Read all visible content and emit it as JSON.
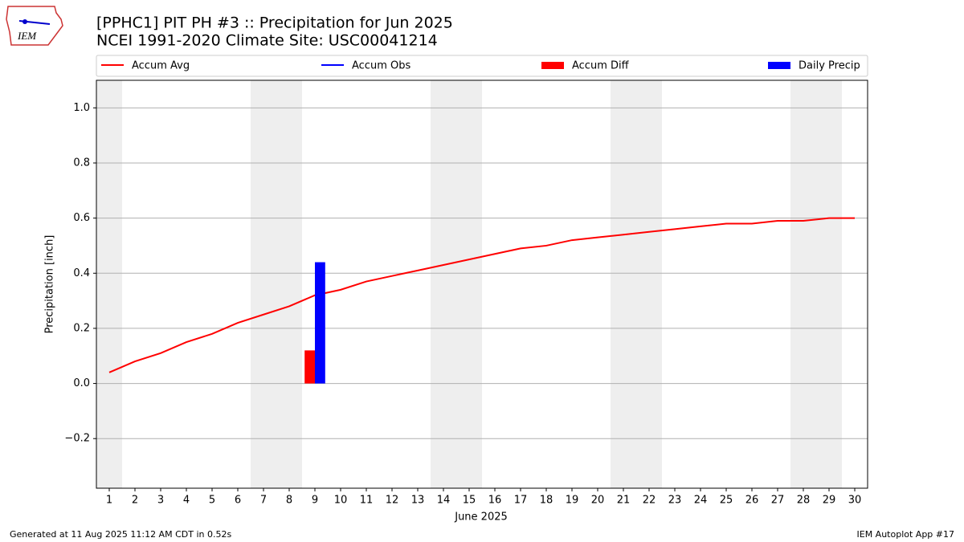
{
  "logo_text": "IEM",
  "footer_left": "Generated at 11 Aug 2025 11:12 AM CDT in 0.52s",
  "footer_right": "IEM Autoplot App #17",
  "chart_data": {
    "type": "line",
    "title": "[PPHC1] PIT PH #3 :: Precipitation for Jun 2025",
    "subtitle": "NCEI 1991-2020 Climate Site: USC00041214",
    "x_label": "June 2025",
    "y_label": "Precipitation [inch]",
    "x": [
      1,
      2,
      3,
      4,
      5,
      6,
      7,
      8,
      9,
      10,
      11,
      12,
      13,
      14,
      15,
      16,
      17,
      18,
      19,
      20,
      21,
      22,
      23,
      24,
      25,
      26,
      27,
      28,
      29,
      30
    ],
    "xlim": [
      0.5,
      30.5
    ],
    "xticks": [
      1,
      2,
      3,
      4,
      5,
      6,
      7,
      8,
      9,
      10,
      11,
      12,
      13,
      14,
      15,
      16,
      17,
      18,
      19,
      20,
      21,
      22,
      23,
      24,
      25,
      26,
      27,
      28,
      29,
      30
    ],
    "ylim": [
      -0.38,
      1.1
    ],
    "yticks": [
      {
        "value": -0.2,
        "label": "−0.2"
      },
      {
        "value": 0,
        "label": "0.0"
      },
      {
        "value": 0.2,
        "label": "0.2"
      },
      {
        "value": 0.4,
        "label": "0.4"
      },
      {
        "value": 0.6,
        "label": "0.6"
      },
      {
        "value": 0.8,
        "label": "0.8"
      },
      {
        "value": 1.0,
        "label": "1.0"
      }
    ],
    "grid": true,
    "shaded_spans": [
      [
        0.5,
        1.5
      ],
      [
        6.5,
        8.5
      ],
      [
        13.5,
        15.5
      ],
      [
        20.5,
        22.5
      ],
      [
        27.5,
        29.5
      ]
    ],
    "shade_color": "#eeeeee",
    "series": [
      {
        "name": "Accum Avg",
        "type": "line",
        "color": "#ff0000",
        "values": [
          0.04,
          0.08,
          0.11,
          0.15,
          0.18,
          0.22,
          0.25,
          0.28,
          0.32,
          0.34,
          0.37,
          0.39,
          0.41,
          0.43,
          0.45,
          0.47,
          0.49,
          0.5,
          0.52,
          0.53,
          0.54,
          0.55,
          0.56,
          0.57,
          0.58,
          0.58,
          0.59,
          0.59,
          0.6,
          0.6
        ]
      },
      {
        "name": "Accum Obs",
        "type": "line",
        "color": "#0000ff",
        "values": [
          null,
          null,
          null,
          null,
          null,
          null,
          null,
          null,
          null,
          null,
          null,
          null,
          null,
          null,
          null,
          null,
          null,
          null,
          null,
          null,
          null,
          null,
          null,
          null,
          null,
          null,
          null,
          null,
          null,
          null
        ]
      },
      {
        "name": "Accum Diff",
        "type": "bar",
        "color": "#ff0000",
        "values": [
          null,
          null,
          null,
          null,
          null,
          null,
          null,
          null,
          0.12,
          null,
          null,
          null,
          null,
          null,
          null,
          null,
          null,
          null,
          null,
          null,
          null,
          null,
          null,
          null,
          null,
          null,
          null,
          null,
          null,
          null
        ]
      },
      {
        "name": "Daily Precip",
        "type": "bar",
        "color": "#0000ff",
        "values": [
          null,
          null,
          null,
          null,
          null,
          null,
          null,
          null,
          0.44,
          null,
          null,
          null,
          null,
          null,
          null,
          null,
          null,
          null,
          null,
          null,
          null,
          null,
          null,
          null,
          null,
          null,
          null,
          null,
          null,
          null
        ]
      }
    ]
  }
}
